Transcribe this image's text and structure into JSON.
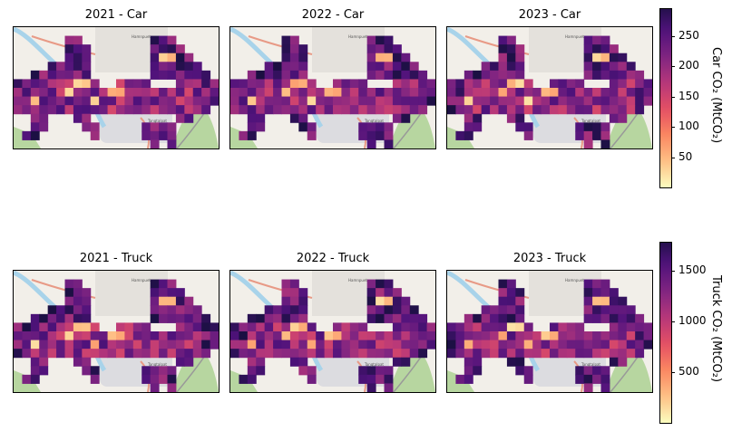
{
  "panels": [
    {
      "title": "2021 - Car",
      "vehicle": "car",
      "year": 2021
    },
    {
      "title": "2022 - Car",
      "vehicle": "car",
      "year": 2022
    },
    {
      "title": "2023 - Car",
      "vehicle": "car",
      "year": 2023
    },
    {
      "title": "2021 - Truck",
      "vehicle": "truck",
      "year": 2021
    },
    {
      "title": "2022 - Truck",
      "vehicle": "truck",
      "year": 2022
    },
    {
      "title": "2023 - Truck",
      "vehicle": "truck",
      "year": 2023
    }
  ],
  "map_labels": {
    "north": "Hamnpuet",
    "south": "Tangtalpat"
  },
  "colorbars": {
    "car": {
      "label": "Car CO₂ (MtCO₂)",
      "ticks": [
        "50",
        "100",
        "150",
        "200",
        "250"
      ],
      "tick_values": [
        50,
        100,
        150,
        200,
        250
      ],
      "range": [
        0,
        295
      ]
    },
    "truck": {
      "label": "Truck CO₂ (MtCO₂)",
      "ticks": [
        "500",
        "1000",
        "1500"
      ],
      "tick_values": [
        500,
        1000,
        1500
      ],
      "range": [
        0,
        1780
      ]
    }
  },
  "chart_data": {
    "type": "heatmap",
    "colormap": "magma",
    "grid": {
      "cols": 24,
      "rows": 14
    },
    "panels": [
      {
        "title": "2021 - Car",
        "colorbar": "Car CO₂ (MtCO₂)"
      },
      {
        "title": "2022 - Car",
        "colorbar": "Car CO₂ (MtCO₂)"
      },
      {
        "title": "2023 - Car",
        "colorbar": "Car CO₂ (MtCO₂)"
      },
      {
        "title": "2021 - Truck",
        "colorbar": "Truck CO₂ (MtCO₂)"
      },
      {
        "title": "2022 - Truck",
        "colorbar": "Truck CO₂ (MtCO₂)"
      },
      {
        "title": "2023 - Truck",
        "colorbar": "Truck CO₂ (MtCO₂)"
      }
    ],
    "intensity_pattern": [
      "........................",
      "......##........###.....",
      "......###.......####....",
      "......###.......#####...",
      "....#####.......######..",
      "..#######.......#######.",
      "##########..####...#####",
      "########################",
      "########################",
      "#######################.",
      "..##...##..........##...",
      "..##....##.....####.....",
      ".##......#.....####.....",
      "................#.#....."
    ]
  }
}
